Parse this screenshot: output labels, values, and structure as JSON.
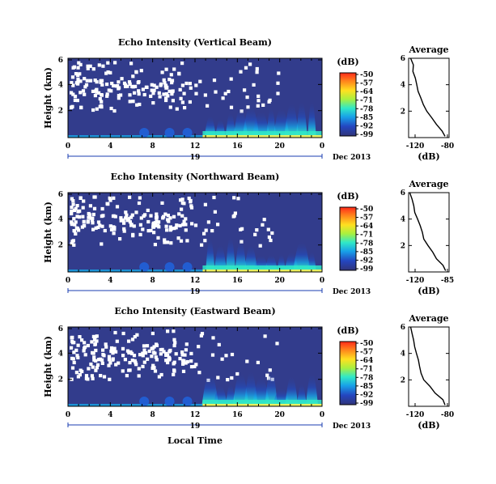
{
  "colorbar": {
    "unit": "(dB)",
    "ticks": [
      "-50",
      "-57",
      "-64",
      "-71",
      "-78",
      "-85",
      "-92",
      "-99"
    ],
    "colors": [
      "#ff3020",
      "#ff8a20",
      "#ffd820",
      "#b8f040",
      "#30e8c8",
      "#18a8e8",
      "#2050c8",
      "#303a88"
    ]
  },
  "panels": [
    {
      "title": "Echo Intensity (Vertical Beam)",
      "ylabel": "Height (km)",
      "yticks": [
        "6",
        "4",
        "2"
      ],
      "xticks": [
        "0",
        "4",
        "8",
        "12",
        "16",
        "20",
        "0"
      ],
      "day": "19",
      "date": "Dec 2013",
      "avg_title": "Average",
      "avg_xlabel": "(dB)",
      "avg_xticks": [
        "-120",
        "-80"
      ],
      "avg_yticks": [
        "6",
        "4",
        "2"
      ]
    },
    {
      "title": "Echo Intensity (Northward Beam)",
      "ylabel": "Height (km)",
      "yticks": [
        "6",
        "4",
        "2"
      ],
      "xticks": [
        "0",
        "4",
        "8",
        "12",
        "16",
        "20",
        "0"
      ],
      "day": "19",
      "date": "Dec 2013",
      "avg_title": "Average",
      "avg_xlabel": "(dB)",
      "avg_xticks": [
        "-120",
        "-85"
      ],
      "avg_yticks": [
        "6",
        "4",
        "2"
      ]
    },
    {
      "title": "Echo Intensity (Eastward Beam)",
      "ylabel": "Height (km)",
      "yticks": [
        "6",
        "4",
        "2"
      ],
      "xticks": [
        "0",
        "4",
        "8",
        "12",
        "16",
        "20",
        "0"
      ],
      "day": "19",
      "date": "Dec 2013",
      "avg_title": "Average",
      "avg_xlabel": "(dB)",
      "avg_xticks": [
        "-120",
        "-80"
      ],
      "avg_yticks": [
        "6",
        "4",
        "2"
      ]
    }
  ],
  "xlabel_bottom": "Local Time",
  "chart_data": [
    {
      "type": "heatmap",
      "title": "Echo Intensity (Vertical Beam)",
      "ylabel": "Height (km)",
      "xlabel": "Local Time",
      "x_ticks": [
        "0",
        "4",
        "8",
        "12",
        "16",
        "20",
        "0"
      ],
      "ylim": [
        0,
        6
      ],
      "clim": [
        -99,
        -50
      ],
      "profile": {
        "ylim": [
          0,
          6
        ],
        "xlim": [
          -120,
          -80
        ],
        "height": [
          0.1,
          0.5,
          1.0,
          1.5,
          2.0,
          2.5,
          3.0,
          3.5,
          4.0,
          4.5,
          5.0,
          5.5,
          6.0
        ],
        "db": [
          -84,
          -86,
          -92,
          -98,
          -103,
          -106,
          -108,
          -110,
          -112,
          -114,
          -115,
          -116,
          -118
        ]
      }
    },
    {
      "type": "heatmap",
      "title": "Echo Intensity (Northward Beam)",
      "ylabel": "Height (km)",
      "xlabel": "Local Time",
      "x_ticks": [
        "0",
        "4",
        "8",
        "12",
        "16",
        "20",
        "0"
      ],
      "ylim": [
        0,
        6
      ],
      "clim": [
        -99,
        -50
      ],
      "profile": {
        "ylim": [
          0,
          6
        ],
        "xlim": [
          -120,
          -85
        ],
        "height": [
          0.1,
          0.5,
          1.0,
          1.5,
          2.0,
          2.5,
          3.0,
          3.5,
          4.0,
          4.5,
          5.0,
          5.5,
          6.0
        ],
        "db": [
          -88,
          -90,
          -95,
          -100,
          -104,
          -107,
          -109,
          -111,
          -113,
          -114,
          -116,
          -117,
          -119
        ]
      }
    },
    {
      "type": "heatmap",
      "title": "Echo Intensity (Eastward Beam)",
      "ylabel": "Height (km)",
      "xlabel": "Local Time",
      "x_ticks": [
        "0",
        "4",
        "8",
        "12",
        "16",
        "20",
        "0"
      ],
      "ylim": [
        0,
        6
      ],
      "clim": [
        -99,
        -50
      ],
      "profile": {
        "ylim": [
          0,
          6
        ],
        "xlim": [
          -120,
          -80
        ],
        "height": [
          0.1,
          0.5,
          1.0,
          1.5,
          2.0,
          2.5,
          3.0,
          3.5,
          4.0,
          4.5,
          5.0,
          5.5,
          6.0
        ],
        "db": [
          -84,
          -87,
          -93,
          -99,
          -104,
          -107,
          -109,
          -111,
          -113,
          -114,
          -116,
          -117,
          -118
        ]
      }
    }
  ]
}
